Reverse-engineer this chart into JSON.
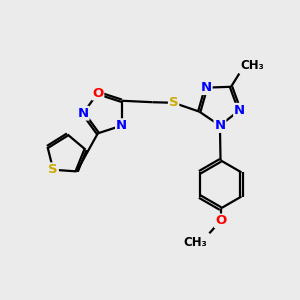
{
  "background_color": "#ebebeb",
  "fig_size": [
    3.0,
    3.0
  ],
  "dpi": 100,
  "bond_color": "#000000",
  "bond_width": 1.6,
  "atom_colors": {
    "N": "#0000ff",
    "O": "#ff0000",
    "S": "#ccaa00",
    "C": "#000000"
  },
  "font_size": 9.5,
  "font_size_small": 8.5,
  "font_weight": "bold",
  "xlim": [
    0,
    10
  ],
  "ylim": [
    0,
    10
  ]
}
